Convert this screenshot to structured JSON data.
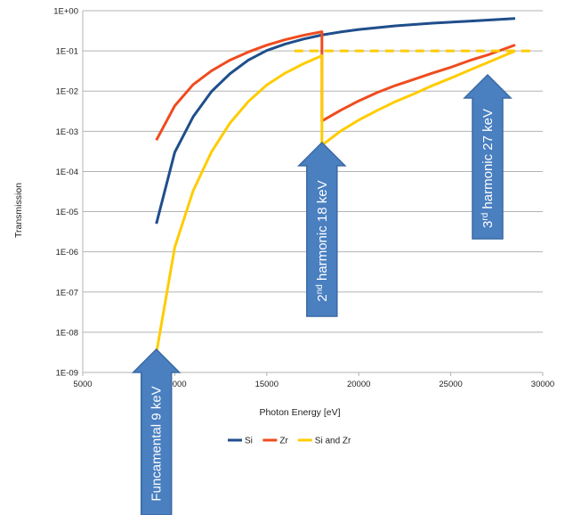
{
  "chart_data": {
    "type": "line",
    "xlabel": "Photon Energy [eV]",
    "ylabel": "Transmission",
    "xlim": [
      5000,
      30000
    ],
    "ylim": [
      1e-09,
      1
    ],
    "yscale": "log",
    "x_ticks": [
      "5000",
      "10000",
      "15000",
      "20000",
      "25000",
      "30000"
    ],
    "y_ticks": [
      "1E-09",
      "1E-08",
      "1E-07",
      "1E-06",
      "1E-05",
      "1E-04",
      "1E-03",
      "1E-02",
      "1E-01",
      "1E+00"
    ],
    "grid": "horizontal",
    "legend_position": "bottom",
    "series": [
      {
        "name": "Si",
        "color": "#1f4e8c",
        "x": [
          9000,
          10000,
          11000,
          12000,
          13000,
          14000,
          15000,
          16000,
          17000,
          18000,
          19000,
          20000,
          22000,
          24000,
          26000,
          28500
        ],
        "y": [
          5e-06,
          0.0003,
          0.0023,
          0.0098,
          0.027,
          0.059,
          0.102,
          0.148,
          0.197,
          0.249,
          0.295,
          0.34,
          0.42,
          0.49,
          0.55,
          0.64
        ]
      },
      {
        "name": "Zr",
        "color": "#ef4c1e",
        "x": [
          9000,
          10000,
          11000,
          12000,
          13000,
          14000,
          15000,
          16000,
          17000,
          17998,
          18000,
          19000,
          20000,
          21000,
          22000,
          23000,
          24000,
          25000,
          26000,
          27000,
          28500
        ],
        "y": [
          0.0006,
          0.0043,
          0.0145,
          0.032,
          0.059,
          0.094,
          0.139,
          0.19,
          0.245,
          0.3,
          0.0018,
          0.0033,
          0.0057,
          0.0092,
          0.0138,
          0.0196,
          0.028,
          0.039,
          0.057,
          0.079,
          0.14
        ]
      },
      {
        "name": "Si and Zr",
        "color": "#ffcc00",
        "x": [
          9000,
          10000,
          11000,
          12000,
          13000,
          14000,
          15000,
          16000,
          17000,
          17998,
          18000,
          19000,
          20000,
          21000,
          22000,
          23000,
          24000,
          25000,
          26000,
          27000,
          28500
        ],
        "y": [
          3e-09,
          1.3e-06,
          3.3e-05,
          0.00031,
          0.0016,
          0.0055,
          0.0142,
          0.028,
          0.048,
          0.076,
          0.00045,
          0.001,
          0.0019,
          0.0033,
          0.0055,
          0.0085,
          0.0137,
          0.021,
          0.033,
          0.051,
          0.1
        ]
      },
      {
        "name": "",
        "color": "#ffcc00",
        "style": "dashed",
        "x": [
          16500,
          29500
        ],
        "y": [
          0.1,
          0.1
        ]
      }
    ],
    "annotations": [
      {
        "text": "Funcamental  9 keV",
        "x": 9000,
        "y": 1e-09
      },
      {
        "text": "2nd harmonic 18 keV",
        "x": 18000,
        "y": 0.00045
      },
      {
        "text": "3rd harmonic 27 keV",
        "x": 27000,
        "y": 0.08
      }
    ]
  },
  "arrows": [
    {
      "prefix": "Funcamental  9 keV",
      "super": "",
      "suffix": ""
    },
    {
      "prefix": "2",
      "super": "nd",
      "suffix": " harmonic 18 keV"
    },
    {
      "prefix": "3",
      "super": "rd",
      "suffix": " harmonic 27 keV"
    }
  ],
  "arrow_color": "#4a7fc0",
  "arrow_border": "#3a6aa4"
}
